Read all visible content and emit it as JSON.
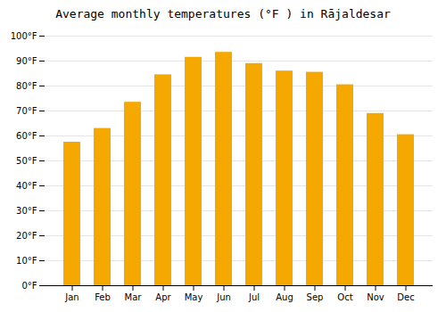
{
  "chart_data": {
    "type": "bar",
    "title": "Average monthly temperatures (°F ) in Rājaldesar",
    "categories": [
      "Jan",
      "Feb",
      "Mar",
      "Apr",
      "May",
      "Jun",
      "Jul",
      "Aug",
      "Sep",
      "Oct",
      "Nov",
      "Dec"
    ],
    "values": [
      57.5,
      63,
      73.5,
      84.5,
      91.5,
      93.5,
      89,
      86,
      85.5,
      80.5,
      69,
      60.5
    ],
    "color": "#F5A800",
    "ylim": [
      0,
      100
    ],
    "yticks": [
      {
        "value": 0,
        "label": "0°F"
      },
      {
        "value": 10,
        "label": "10°F"
      },
      {
        "value": 20,
        "label": "20°F"
      },
      {
        "value": 30,
        "label": "30°F"
      },
      {
        "value": 40,
        "label": "40°F"
      },
      {
        "value": 50,
        "label": "50°F"
      },
      {
        "value": 60,
        "label": "60°F"
      },
      {
        "value": 70,
        "label": "70°F"
      },
      {
        "value": 80,
        "label": "80°F"
      },
      {
        "value": 90,
        "label": "90°F"
      },
      {
        "value": 100,
        "label": "100°F"
      }
    ],
    "grid": true
  }
}
